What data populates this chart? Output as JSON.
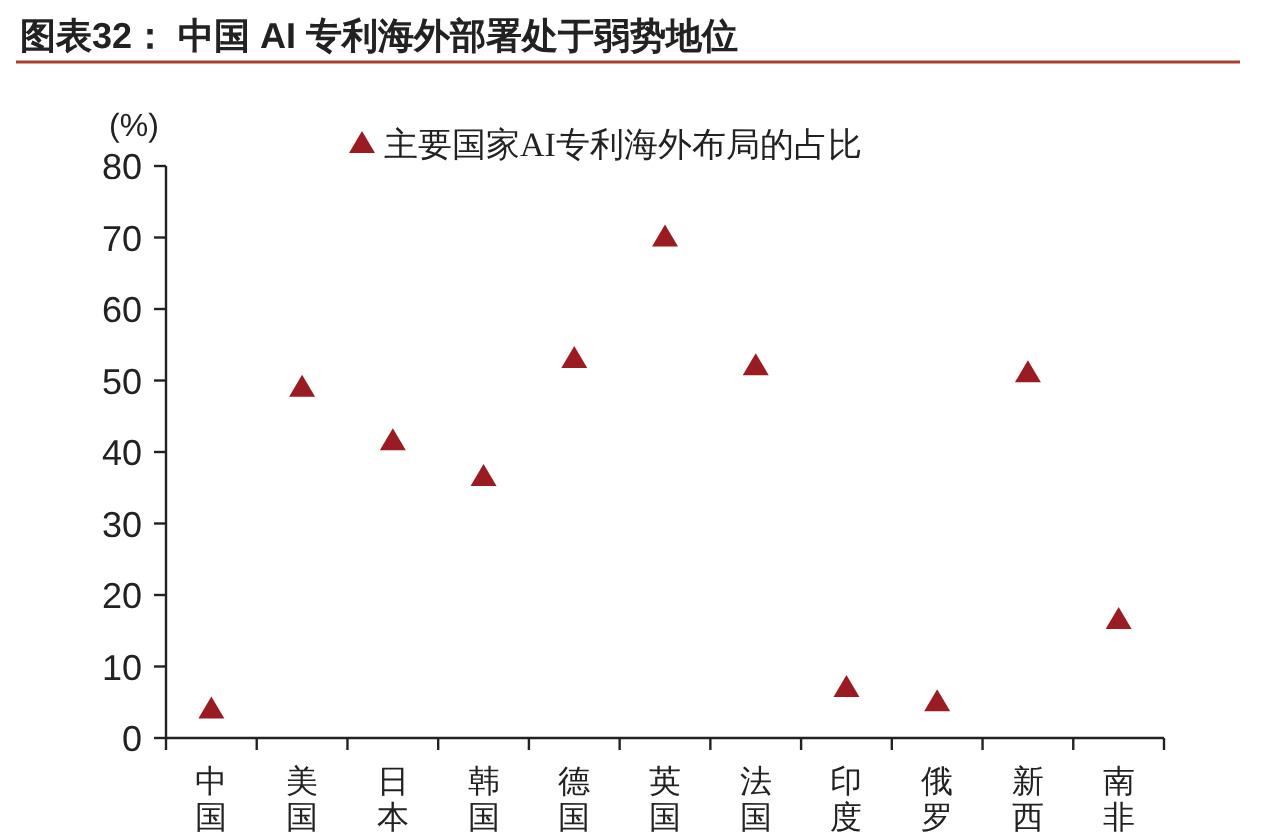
{
  "chart_data": {
    "type": "scatter",
    "title": "图表32： 中国 AI 专利海外部署处于弱势地位",
    "ylabel": "(%)",
    "categories": [
      "中国",
      "美国",
      "日本",
      "韩国",
      "德国",
      "英国",
      "法国",
      "印度",
      "俄罗",
      "新西",
      "南非"
    ],
    "series": [
      {
        "name": "主要国家AI专利海外布局的占比",
        "color": "#9b1b22",
        "values": [
          4,
          49,
          41.5,
          36.5,
          53,
          70,
          52,
          7,
          5,
          51,
          16.5
        ]
      }
    ],
    "ylim": [
      0,
      80
    ],
    "yticks": [
      0,
      10,
      20,
      30,
      40,
      50,
      60,
      70,
      80
    ],
    "grid": false,
    "legend": "top",
    "marker": "triangle"
  }
}
